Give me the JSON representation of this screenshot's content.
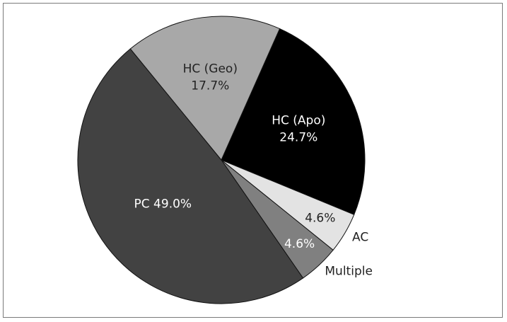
{
  "chart_data": {
    "type": "pie",
    "title": "",
    "slices": [
      {
        "name": "HC (Apo)",
        "value": 24.7,
        "display": "24.7%",
        "color": "#000000",
        "label_color": "#ffffff",
        "label_mode": "inside-two-line"
      },
      {
        "name": "AC",
        "value": 4.6,
        "display": "4.6%",
        "color": "#e3e3e3",
        "label_color": "#222222",
        "label_mode": "inside-value-outside-name"
      },
      {
        "name": "Multiple",
        "value": 4.6,
        "display": "4.6%",
        "color": "#808080",
        "label_color": "#ffffff",
        "label_mode": "inside-value-outside-name"
      },
      {
        "name": "PC",
        "value": 49.0,
        "display": "49.0%",
        "color": "#424242",
        "label_color": "#ffffff",
        "label_mode": "inside-one-line"
      },
      {
        "name": "HC (Geo)",
        "value": 17.7,
        "display": "17.7%",
        "color": "#a8a8a8",
        "label_color": "#222222",
        "label_mode": "inside-two-line"
      }
    ]
  }
}
